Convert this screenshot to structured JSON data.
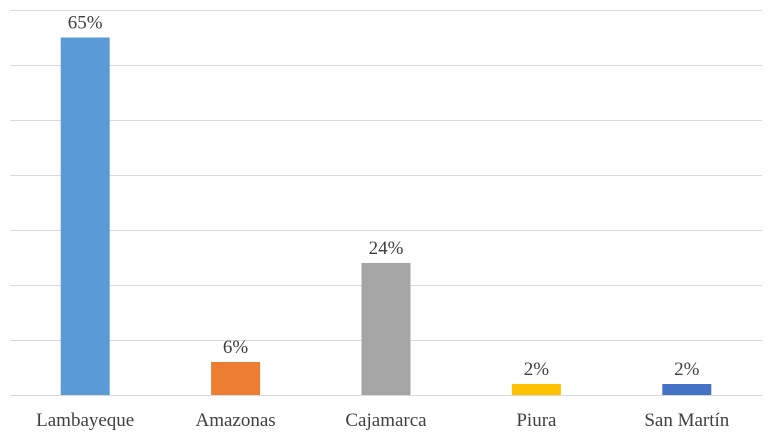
{
  "chart_data": {
    "type": "bar",
    "title": "",
    "xlabel": "",
    "ylabel": "",
    "categories": [
      "Lambayeque",
      "Amazonas",
      "Cajamarca",
      "Piura",
      "San Martín"
    ],
    "values": [
      65,
      6,
      24,
      2,
      2
    ],
    "data_labels": [
      "65%",
      "6%",
      "24%",
      "2%",
      "2%"
    ],
    "colors": [
      "#5b9bd5",
      "#ed7d31",
      "#a5a5a5",
      "#ffc000",
      "#4472c4"
    ],
    "ylim": [
      0,
      70
    ],
    "y_gridline_step": 10,
    "y_tick_labels_visible": false,
    "grid": true,
    "legend": "none"
  }
}
